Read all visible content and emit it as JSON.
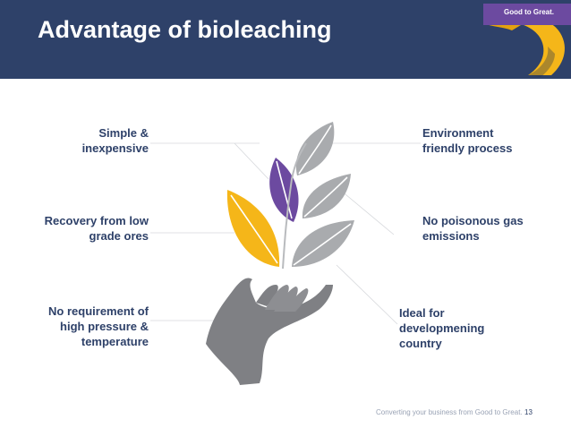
{
  "slide": {
    "title": "Advantage of bioleaching",
    "brand": "Good to Great.",
    "colors": {
      "header": "#2e4169",
      "accent_purple": "#6c4aa0",
      "accent_yellow": "#f5b619",
      "leaf_gray": "#a9abae",
      "hand_gray": "#7f8084",
      "text": "#2e4169"
    }
  },
  "advantages": {
    "left": [
      {
        "line1": "Simple &",
        "line2": "inexpensive"
      },
      {
        "line1": "Recovery from low",
        "line2": "grade ores"
      },
      {
        "line1": "No requirement of",
        "line2": "high pressure &",
        "line3": "temperature"
      }
    ],
    "right": [
      {
        "line1": "Environment",
        "line2": "friendly process"
      },
      {
        "line1": "No poisonous gas",
        "line2": "emissions"
      },
      {
        "line1": "Ideal for",
        "line2": "developmening",
        "line3": "country"
      }
    ]
  },
  "illustration": {
    "icons": [
      "leaf-icon",
      "hand-icon",
      "brand-ribbon-icon"
    ]
  },
  "footer": {
    "tagline": "Converting your business from Good to Great.",
    "page_number": "13"
  }
}
